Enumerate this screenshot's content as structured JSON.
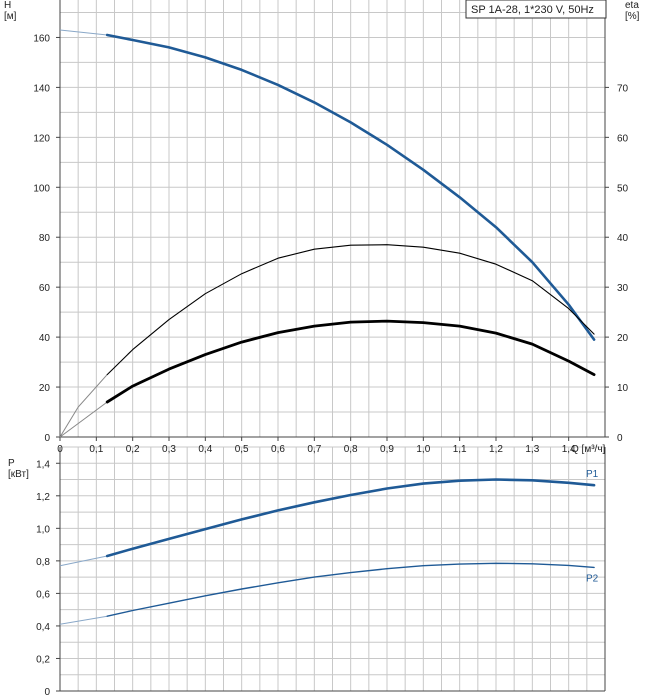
{
  "legend": "SP 1A-28, 1*230 V, 50Hz",
  "colors": {
    "head": "#1f5a96",
    "power": "#1f5a96",
    "eta": "#000000",
    "grid": "#c8c8c8"
  },
  "chart_data": [
    {
      "type": "line",
      "title": "",
      "ylabel": "H\n[м]",
      "y2label": "eta\n[%]",
      "xlabel": "Q [м³/ч]",
      "xlim": [
        0,
        1.5
      ],
      "ylim": [
        0,
        175
      ],
      "y2lim": [
        0,
        87.5
      ],
      "grid": true,
      "x_ticks": [
        "0",
        "0,1",
        "0,2",
        "0,3",
        "0,4",
        "0,5",
        "0,6",
        "0,7",
        "0,8",
        "0,9",
        "1,0",
        "1,1",
        "1,2",
        "1,3",
        "1,4"
      ],
      "x_tick_values": [
        0,
        0.1,
        0.2,
        0.3,
        0.4,
        0.5,
        0.6,
        0.7,
        0.8,
        0.9,
        1.0,
        1.1,
        1.2,
        1.3,
        1.4
      ],
      "y_ticks": [
        "0",
        "20",
        "40",
        "60",
        "80",
        "100",
        "120",
        "140",
        "160"
      ],
      "y_tick_values": [
        0,
        20,
        40,
        60,
        80,
        100,
        120,
        140,
        160
      ],
      "y2_ticks": [
        "0",
        "10",
        "20",
        "30",
        "40",
        "50",
        "60",
        "70"
      ],
      "y2_tick_values": [
        0,
        10,
        20,
        30,
        40,
        50,
        60,
        70
      ],
      "series": [
        {
          "axis": "left",
          "style": "head",
          "x": [
            0,
            0.13,
            0.2,
            0.3,
            0.4,
            0.5,
            0.6,
            0.7,
            0.8,
            0.9,
            1.0,
            1.1,
            1.2,
            1.3,
            1.4,
            1.47
          ],
          "y": [
            163,
            161,
            159,
            156,
            152,
            147,
            141,
            134,
            126,
            117,
            107,
            96,
            84,
            70,
            53,
            39
          ],
          "solid_from": 0.13
        },
        {
          "axis": "right",
          "style": "eta_thin",
          "x": [
            0,
            0.05,
            0.13,
            0.2,
            0.3,
            0.4,
            0.5,
            0.6,
            0.7,
            0.8,
            0.9,
            1.0,
            1.1,
            1.2,
            1.3,
            1.4,
            1.47
          ],
          "y": [
            0,
            6,
            12.5,
            17.5,
            23.5,
            28.7,
            32.7,
            35.8,
            37.6,
            38.4,
            38.5,
            38.0,
            36.8,
            34.6,
            31.3,
            25.7,
            20.6
          ],
          "solid_from": 0.13
        },
        {
          "axis": "right",
          "style": "eta_thick",
          "x": [
            0,
            0.13,
            0.2,
            0.3,
            0.4,
            0.5,
            0.6,
            0.7,
            0.8,
            0.9,
            1.0,
            1.1,
            1.2,
            1.3,
            1.4,
            1.47
          ],
          "y": [
            0,
            7,
            10.2,
            13.6,
            16.5,
            19,
            20.9,
            22.2,
            23,
            23.2,
            22.9,
            22.2,
            20.8,
            18.6,
            15.2,
            12.5
          ],
          "solid_from": 0.13
        }
      ]
    },
    {
      "type": "line",
      "title": "",
      "ylabel": "P\n[кВт]",
      "xlim": [
        0,
        1.5
      ],
      "ylim": [
        0,
        1.5
      ],
      "grid": true,
      "y_ticks": [
        "0",
        "0,2",
        "0,4",
        "0,6",
        "0,8",
        "1,0",
        "1,2",
        "1,4"
      ],
      "y_tick_values": [
        0,
        0.2,
        0.4,
        0.6,
        0.8,
        1.0,
        1.2,
        1.4
      ],
      "series": [
        {
          "name": "P1",
          "style": "p1",
          "x": [
            0,
            0.13,
            0.2,
            0.3,
            0.4,
            0.5,
            0.6,
            0.7,
            0.8,
            0.9,
            1.0,
            1.1,
            1.2,
            1.3,
            1.4,
            1.47
          ],
          "y": [
            0.77,
            0.83,
            0.875,
            0.935,
            0.995,
            1.055,
            1.11,
            1.16,
            1.205,
            1.245,
            1.275,
            1.293,
            1.3,
            1.295,
            1.28,
            1.265
          ],
          "solid_from": 0.13
        },
        {
          "name": "P2",
          "style": "p2",
          "x": [
            0,
            0.13,
            0.2,
            0.3,
            0.4,
            0.5,
            0.6,
            0.7,
            0.8,
            0.9,
            1.0,
            1.1,
            1.2,
            1.3,
            1.4,
            1.47
          ],
          "y": [
            0.41,
            0.46,
            0.495,
            0.54,
            0.585,
            0.627,
            0.665,
            0.7,
            0.728,
            0.752,
            0.77,
            0.78,
            0.785,
            0.782,
            0.772,
            0.76
          ],
          "solid_from": 0.13
        }
      ]
    }
  ]
}
